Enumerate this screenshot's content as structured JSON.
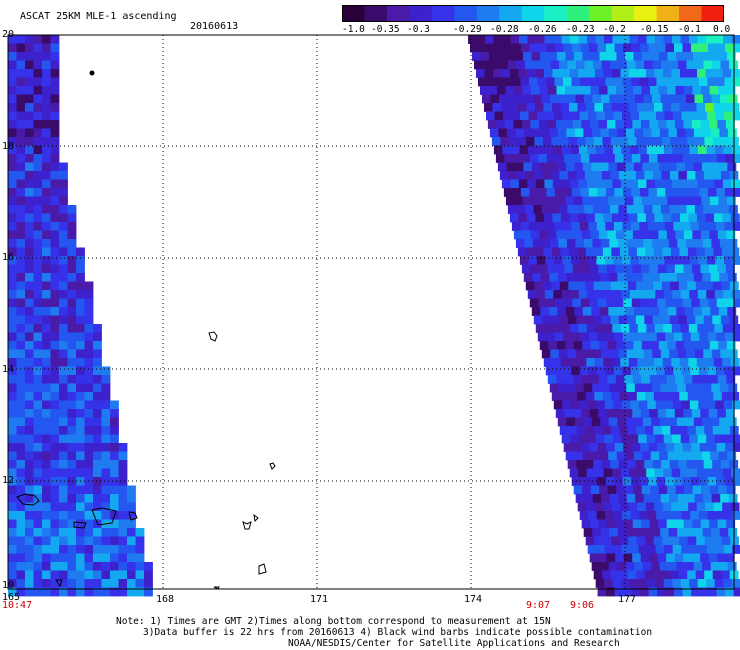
{
  "header": {
    "title": "ASCAT 25KM MLE-1 ascending",
    "date": "20160613"
  },
  "colorbar": {
    "tick_labels": [
      "-1.0",
      "-0.35",
      "-0.3",
      "-0.29",
      "-0.28",
      "-0.26",
      "-0.23",
      "-0.2",
      "-0.15",
      "-0.1",
      "0.0"
    ],
    "colors": [
      "#2a003a",
      "#3a0b6a",
      "#4a1aa8",
      "#3d21cc",
      "#3532ea",
      "#2457f0",
      "#1e7cf0",
      "#14a8f0",
      "#10d4ea",
      "#18f0c4",
      "#30f07c",
      "#6cf028",
      "#b0f018",
      "#e8f010",
      "#f0b018",
      "#f06818",
      "#f02010"
    ]
  },
  "map": {
    "lat_labels": [
      "20",
      "18",
      "16",
      "14",
      "12",
      "10"
    ],
    "lon_labels": [
      "165",
      "168",
      "171",
      "174",
      "177"
    ],
    "time_labels": [
      "10:47",
      "9:07",
      "9:06"
    ]
  },
  "notes": {
    "line1": "Note: 1) Times are GMT 2)Times along bottom correspond to measurement at 15N",
    "line2": "3)Data buffer is 22 hrs from 20160613 4) Black wind barbs indicate possible contamination",
    "line3": "NOAA/NESDIS/Center for Satellite Applications and Research"
  }
}
